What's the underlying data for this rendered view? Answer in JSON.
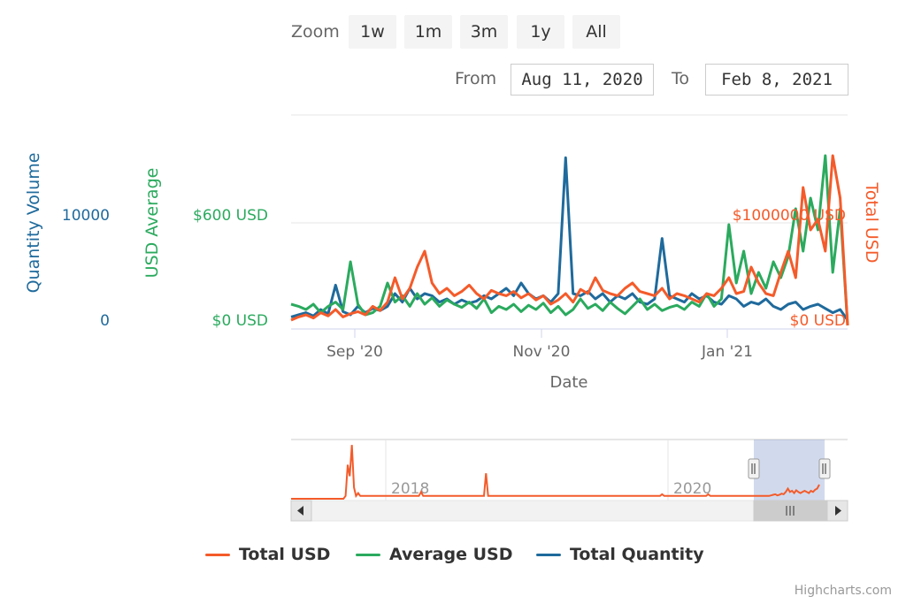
{
  "range_selector": {
    "zoom_label": "Zoom",
    "buttons": [
      "1w",
      "1m",
      "3m",
      "1y",
      "All"
    ],
    "from_label": "From",
    "from_value": "Aug 11, 2020",
    "to_label": "To",
    "to_value": "Feb 8, 2021"
  },
  "credits": "Highcharts.com",
  "colors": {
    "total_usd": "#f45b2a",
    "average_usd": "#2baa5e",
    "total_quantity": "#1f6a9c"
  },
  "chart_data": {
    "type": "line",
    "xlabel": "Date",
    "x_ticks": [
      "Sep '20",
      "Nov '20",
      "Jan '21"
    ],
    "axes": {
      "quantity": {
        "title": "Quantity Volume",
        "ticks": [
          "0",
          "10000"
        ]
      },
      "average": {
        "title": "USD Average",
        "ticks": [
          "$0 USD",
          "$600 USD"
        ]
      },
      "total": {
        "title": "Total USD",
        "ticks": [
          "$0 USD",
          "$1000000 USD"
        ]
      }
    },
    "series": [
      {
        "name": "Total USD",
        "axis": "total_usd",
        "values": [
          0.05,
          0.08,
          0.1,
          0.07,
          0.12,
          0.09,
          0.15,
          0.08,
          0.11,
          0.13,
          0.1,
          0.18,
          0.14,
          0.22,
          0.45,
          0.25,
          0.35,
          0.55,
          0.7,
          0.4,
          0.3,
          0.35,
          0.28,
          0.32,
          0.38,
          0.3,
          0.25,
          0.33,
          0.3,
          0.28,
          0.32,
          0.26,
          0.3,
          0.24,
          0.28,
          0.2,
          0.24,
          0.3,
          0.22,
          0.34,
          0.3,
          0.45,
          0.33,
          0.3,
          0.28,
          0.35,
          0.4,
          0.32,
          0.3,
          0.28,
          0.35,
          0.25,
          0.3,
          0.28,
          0.25,
          0.22,
          0.3,
          0.28,
          0.35,
          0.45,
          0.3,
          0.32,
          0.55,
          0.4,
          0.3,
          0.28,
          0.5,
          0.7,
          0.45,
          1.3,
          0.9,
          1.0,
          0.7,
          1.6,
          1.2,
          0.0
        ]
      },
      {
        "name": "Average USD",
        "axis": "usd_average",
        "values": [
          0.2,
          0.18,
          0.15,
          0.2,
          0.12,
          0.18,
          0.22,
          0.15,
          0.6,
          0.2,
          0.1,
          0.12,
          0.18,
          0.4,
          0.22,
          0.28,
          0.18,
          0.3,
          0.2,
          0.26,
          0.18,
          0.24,
          0.2,
          0.17,
          0.22,
          0.16,
          0.25,
          0.12,
          0.18,
          0.15,
          0.2,
          0.13,
          0.19,
          0.15,
          0.21,
          0.12,
          0.18,
          0.1,
          0.15,
          0.25,
          0.16,
          0.2,
          0.14,
          0.22,
          0.16,
          0.11,
          0.18,
          0.25,
          0.15,
          0.2,
          0.14,
          0.17,
          0.19,
          0.15,
          0.22,
          0.18,
          0.3,
          0.18,
          0.25,
          0.95,
          0.4,
          0.7,
          0.3,
          0.5,
          0.35,
          0.6,
          0.45,
          0.65,
          1.1,
          0.7,
          1.2,
          0.9,
          1.6,
          0.5,
          1.1,
          0.0
        ]
      },
      {
        "name": "Total Quantity",
        "axis": "quantity",
        "values": [
          0.08,
          0.1,
          0.12,
          0.09,
          0.15,
          0.11,
          0.38,
          0.13,
          0.1,
          0.18,
          0.12,
          0.16,
          0.14,
          0.18,
          0.3,
          0.22,
          0.35,
          0.25,
          0.3,
          0.28,
          0.22,
          0.25,
          0.2,
          0.24,
          0.21,
          0.23,
          0.28,
          0.25,
          0.3,
          0.35,
          0.28,
          0.4,
          0.3,
          0.25,
          0.28,
          0.22,
          0.3,
          1.58,
          0.3,
          0.28,
          0.32,
          0.25,
          0.3,
          0.22,
          0.28,
          0.25,
          0.3,
          0.22,
          0.2,
          0.25,
          0.82,
          0.28,
          0.25,
          0.22,
          0.3,
          0.25,
          0.28,
          0.22,
          0.2,
          0.28,
          0.25,
          0.18,
          0.22,
          0.2,
          0.25,
          0.18,
          0.15,
          0.2,
          0.22,
          0.15,
          0.18,
          0.2,
          0.16,
          0.12,
          0.15,
          0.05
        ]
      }
    ],
    "navigator": {
      "x_ticks": [
        "2018",
        "2020"
      ],
      "series": "Total USD",
      "values": [
        0,
        0,
        0,
        0,
        0,
        0,
        0,
        0,
        0,
        0,
        0,
        0,
        0,
        0,
        0,
        0,
        0,
        0,
        0,
        0,
        0,
        0,
        0,
        0,
        0,
        0,
        0.05,
        0.6,
        0.4,
        0.95,
        0.2,
        0.05,
        0.1,
        0.05,
        0.05,
        0.05,
        0.05,
        0.05,
        0.05,
        0.05,
        0.05,
        0.05,
        0.05,
        0.05,
        0.05,
        0.05,
        0.05,
        0.05,
        0.05,
        0.05,
        0.05,
        0.05,
        0.05,
        0.05,
        0.05,
        0.05,
        0.05,
        0.05,
        0.05,
        0.05,
        0.05,
        0.05,
        0.12,
        0.05,
        0.05,
        0.05,
        0.05,
        0.05,
        0.05,
        0.05,
        0.05,
        0.05,
        0.05,
        0.05,
        0.05,
        0.05,
        0.05,
        0.05,
        0.05,
        0.05,
        0.05,
        0.05,
        0.05,
        0.05,
        0.05,
        0.05,
        0.05,
        0.05,
        0.05,
        0.05,
        0.05,
        0.05,
        0.05,
        0.45,
        0.05,
        0.05,
        0.05,
        0.05,
        0.05,
        0.05,
        0.05,
        0.05,
        0.05,
        0.05,
        0.05,
        0.05,
        0.05,
        0.05,
        0.05,
        0.05,
        0.05,
        0.05,
        0.05,
        0.05,
        0.05,
        0.05,
        0.05,
        0.05,
        0.05,
        0.05,
        0.05,
        0.05,
        0.05,
        0.05,
        0.05,
        0.05,
        0.05,
        0.05,
        0.05,
        0.05,
        0.05,
        0.05,
        0.05,
        0.05,
        0.05,
        0.05,
        0.05,
        0.05,
        0.05,
        0.05,
        0.05,
        0.05,
        0.05,
        0.05,
        0.05,
        0.05,
        0.05,
        0.05,
        0.05,
        0.05,
        0.05,
        0.05,
        0.05,
        0.05,
        0.05,
        0.05,
        0.05,
        0.05,
        0.05,
        0.05,
        0.05,
        0.05,
        0.05,
        0.05,
        0.05,
        0.05,
        0.05,
        0.05,
        0.05,
        0.05,
        0.05,
        0.05,
        0.05,
        0.05,
        0.05,
        0.05,
        0.05,
        0.08,
        0.05,
        0.05,
        0.05,
        0.05,
        0.05,
        0.05,
        0.05,
        0.05,
        0.05,
        0.05,
        0.05,
        0.05,
        0.05,
        0.05,
        0.05,
        0.05,
        0.05,
        0.05,
        0.05,
        0.05,
        0.05,
        0.08,
        0.05,
        0.05,
        0.05,
        0.05,
        0.05,
        0.05,
        0.05,
        0.05,
        0.05,
        0.05,
        0.05,
        0.05,
        0.05,
        0.05,
        0.05,
        0.05,
        0.05,
        0.05,
        0.05,
        0.05,
        0.05,
        0.05,
        0.05,
        0.05,
        0.05,
        0.05,
        0.05,
        0.05,
        0.05,
        0.06,
        0.07,
        0.08,
        0.06,
        0.07,
        0.09,
        0.08,
        0.12,
        0.18,
        0.12,
        0.14,
        0.1,
        0.15,
        0.12,
        0.1,
        0.12,
        0.14,
        0.12,
        0.1,
        0.14,
        0.12,
        0.16,
        0.18,
        0.25
      ]
    }
  }
}
